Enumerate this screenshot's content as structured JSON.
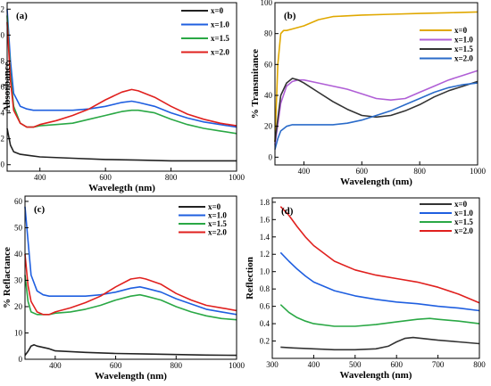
{
  "chart_data": [
    {
      "id": "a",
      "type": "line",
      "panel_label": "(a)",
      "xlabel": "Wavelegth (nm)",
      "ylabel": "Absorbance",
      "xlim": [
        300,
        1000
      ],
      "ylim": [
        -0.05,
        1.25
      ],
      "xticks": [
        400,
        600,
        800,
        1000
      ],
      "yticks": [
        0.0,
        0.2,
        0.4,
        0.6,
        0.8,
        1.0,
        1.2
      ],
      "ytick_labels": [
        "0.0",
        "0.2",
        "0.4",
        "0.6",
        "0.8",
        "1.0",
        "1.2"
      ],
      "legend_position": "top-right",
      "series": [
        {
          "name": "x=0",
          "color": "#222222",
          "x": [
            300,
            310,
            320,
            340,
            370,
            400,
            500,
            600,
            700,
            800,
            900,
            1000
          ],
          "y": [
            0.28,
            0.15,
            0.1,
            0.08,
            0.07,
            0.06,
            0.05,
            0.04,
            0.035,
            0.03,
            0.03,
            0.03
          ]
        },
        {
          "name": "x=1.0",
          "color": "#1f5fe0",
          "x": [
            300,
            310,
            320,
            340,
            360,
            380,
            400,
            450,
            500,
            550,
            600,
            650,
            680,
            700,
            750,
            800,
            850,
            900,
            950,
            1000
          ],
          "y": [
            1.2,
            0.8,
            0.55,
            0.45,
            0.43,
            0.42,
            0.42,
            0.42,
            0.42,
            0.43,
            0.45,
            0.48,
            0.49,
            0.48,
            0.45,
            0.4,
            0.36,
            0.33,
            0.31,
            0.29
          ]
        },
        {
          "name": "x=1.5",
          "color": "#2aa845",
          "x": [
            300,
            310,
            320,
            340,
            360,
            380,
            400,
            450,
            500,
            550,
            600,
            650,
            680,
            700,
            750,
            800,
            850,
            900,
            950,
            1000
          ],
          "y": [
            1.15,
            0.7,
            0.45,
            0.32,
            0.29,
            0.29,
            0.3,
            0.31,
            0.32,
            0.35,
            0.38,
            0.41,
            0.42,
            0.42,
            0.4,
            0.35,
            0.31,
            0.28,
            0.26,
            0.24
          ]
        },
        {
          "name": "x=2.0",
          "color": "#e0201e",
          "x": [
            300,
            310,
            320,
            340,
            360,
            380,
            400,
            450,
            500,
            550,
            600,
            650,
            680,
            700,
            750,
            800,
            850,
            900,
            950,
            1000
          ],
          "y": [
            1.1,
            0.65,
            0.42,
            0.32,
            0.29,
            0.29,
            0.31,
            0.34,
            0.38,
            0.43,
            0.5,
            0.56,
            0.58,
            0.57,
            0.52,
            0.45,
            0.39,
            0.35,
            0.32,
            0.3
          ]
        }
      ]
    },
    {
      "id": "b",
      "type": "line",
      "panel_label": "(b)",
      "xlabel": "Wavelength (nm)",
      "ylabel": "% Transmitance",
      "xlim": [
        300,
        1000
      ],
      "ylim": [
        -5,
        100
      ],
      "xticks": [
        400,
        600,
        800,
        1000
      ],
      "yticks": [
        0,
        20,
        40,
        60,
        80,
        100
      ],
      "ytick_labels": [
        "0",
        "20",
        "40",
        "60",
        "80",
        "100"
      ],
      "legend_position": "right",
      "series": [
        {
          "name": "x=0",
          "color": "#e0a800",
          "x": [
            300,
            310,
            320,
            330,
            340,
            360,
            400,
            450,
            500,
            600,
            700,
            800,
            900,
            1000
          ],
          "y": [
            10,
            60,
            80,
            82,
            82,
            83,
            85,
            89,
            91,
            92,
            92.5,
            93,
            93.5,
            94
          ]
        },
        {
          "name": "x=1.0",
          "color": "#b05fd6",
          "x": [
            300,
            320,
            340,
            360,
            380,
            400,
            450,
            500,
            550,
            600,
            650,
            700,
            750,
            800,
            850,
            900,
            950,
            1000
          ],
          "y": [
            8,
            35,
            46,
            49,
            50,
            50,
            48,
            46,
            44,
            41,
            38,
            37,
            38,
            42,
            46,
            50,
            53,
            56
          ]
        },
        {
          "name": "x=1.5",
          "color": "#333333",
          "x": [
            300,
            320,
            340,
            360,
            380,
            400,
            450,
            500,
            550,
            600,
            650,
            700,
            750,
            800,
            850,
            900,
            950,
            1000
          ],
          "y": [
            10,
            40,
            48,
            51,
            50,
            48,
            42,
            36,
            31,
            27,
            26,
            27,
            30,
            34,
            39,
            43,
            46,
            49
          ]
        },
        {
          "name": "x=2.0",
          "color": "#2a6bc9",
          "x": [
            300,
            310,
            320,
            340,
            360,
            380,
            400,
            450,
            500,
            550,
            600,
            650,
            700,
            750,
            800,
            850,
            900,
            950,
            1000
          ],
          "y": [
            5,
            12,
            17,
            20,
            21,
            21,
            21,
            21,
            21,
            22,
            24,
            27,
            30,
            34,
            38,
            42,
            45,
            47,
            48
          ]
        }
      ]
    },
    {
      "id": "c",
      "type": "line",
      "panel_label": "(c)",
      "xlabel": "Wavelength (nm)",
      "ylabel": "% Reflactance",
      "xlim": [
        300,
        1000
      ],
      "ylim": [
        0,
        62
      ],
      "xticks": [
        400,
        600,
        800,
        1000
      ],
      "yticks": [
        0,
        10,
        20,
        30,
        40,
        50,
        60
      ],
      "ytick_labels": [
        "0",
        "10",
        "20",
        "30",
        "40",
        "50",
        "60"
      ],
      "legend_position": "top-right",
      "series": [
        {
          "name": "x=0",
          "color": "#222222",
          "x": [
            300,
            310,
            320,
            330,
            340,
            360,
            380,
            400,
            500,
            600,
            700,
            800,
            900,
            1000
          ],
          "y": [
            1.5,
            3.0,
            5.0,
            5.5,
            5.0,
            4.5,
            4.0,
            3.2,
            2.6,
            2.2,
            2.0,
            1.8,
            1.6,
            1.5
          ]
        },
        {
          "name": "x=1.0",
          "color": "#1f5fe0",
          "x": [
            300,
            310,
            320,
            340,
            360,
            380,
            400,
            450,
            500,
            550,
            600,
            650,
            680,
            700,
            750,
            800,
            850,
            900,
            950,
            1000
          ],
          "y": [
            58,
            45,
            32,
            26,
            24.5,
            24,
            24,
            24,
            24,
            24.5,
            25.5,
            27,
            27.5,
            27,
            25.5,
            23,
            21,
            19,
            18,
            17
          ]
        },
        {
          "name": "x=1.5",
          "color": "#2aa845",
          "x": [
            300,
            310,
            320,
            340,
            360,
            380,
            400,
            450,
            500,
            550,
            600,
            650,
            680,
            700,
            750,
            800,
            850,
            900,
            950,
            1000
          ],
          "y": [
            32,
            22,
            18,
            17,
            17,
            17,
            17.5,
            18,
            19,
            20.5,
            22.5,
            24,
            24.5,
            24,
            22.5,
            20,
            18,
            16.5,
            15.5,
            15
          ]
        },
        {
          "name": "x=2.0",
          "color": "#e0201e",
          "x": [
            300,
            310,
            320,
            340,
            360,
            380,
            400,
            450,
            500,
            550,
            600,
            650,
            680,
            700,
            750,
            800,
            850,
            900,
            950,
            1000
          ],
          "y": [
            40,
            28,
            22,
            18,
            17,
            17,
            18,
            19.5,
            21.5,
            24,
            27.5,
            30.5,
            31,
            30.5,
            28.5,
            25,
            22.5,
            20.5,
            19.5,
            18.5
          ]
        }
      ]
    },
    {
      "id": "d",
      "type": "line",
      "panel_label": "(d)",
      "xlabel": "Wavelength (nm)",
      "ylabel": "Reflection",
      "xlim": [
        300,
        800
      ],
      "ylim": [
        0,
        1.85
      ],
      "xticks": [
        300,
        400,
        500,
        600,
        700,
        800
      ],
      "yticks": [
        0.2,
        0.4,
        0.6,
        0.8,
        1.0,
        1.2,
        1.4,
        1.6,
        1.8
      ],
      "ytick_labels": [
        "0.2",
        "0.4",
        "0.6",
        "0.8",
        "1.0",
        "1.2",
        "1.4",
        "1.6",
        "1.8"
      ],
      "legend_position": "top-right",
      "series": [
        {
          "name": "x=0",
          "color": "#333333",
          "x": [
            320,
            350,
            400,
            450,
            500,
            550,
            580,
            600,
            620,
            640,
            660,
            700,
            750,
            800
          ],
          "y": [
            0.13,
            0.12,
            0.11,
            0.1,
            0.1,
            0.11,
            0.14,
            0.19,
            0.23,
            0.24,
            0.23,
            0.21,
            0.19,
            0.17
          ]
        },
        {
          "name": "x=1.0",
          "color": "#1f5fe0",
          "x": [
            320,
            340,
            360,
            380,
            400,
            450,
            500,
            550,
            600,
            650,
            700,
            750,
            800
          ],
          "y": [
            1.22,
            1.12,
            1.03,
            0.95,
            0.88,
            0.78,
            0.72,
            0.68,
            0.65,
            0.63,
            0.6,
            0.58,
            0.55
          ]
        },
        {
          "name": "x=1.5",
          "color": "#2aa845",
          "x": [
            320,
            340,
            360,
            380,
            400,
            450,
            500,
            550,
            600,
            650,
            680,
            700,
            750,
            800
          ],
          "y": [
            0.62,
            0.53,
            0.47,
            0.43,
            0.4,
            0.37,
            0.37,
            0.39,
            0.42,
            0.45,
            0.46,
            0.45,
            0.43,
            0.4
          ]
        },
        {
          "name": "x=2.0",
          "color": "#e0201e",
          "x": [
            320,
            340,
            360,
            380,
            400,
            450,
            500,
            550,
            600,
            650,
            700,
            750,
            800
          ],
          "y": [
            1.75,
            1.65,
            1.52,
            1.4,
            1.3,
            1.12,
            1.02,
            0.96,
            0.92,
            0.88,
            0.82,
            0.74,
            0.64
          ]
        }
      ]
    }
  ]
}
